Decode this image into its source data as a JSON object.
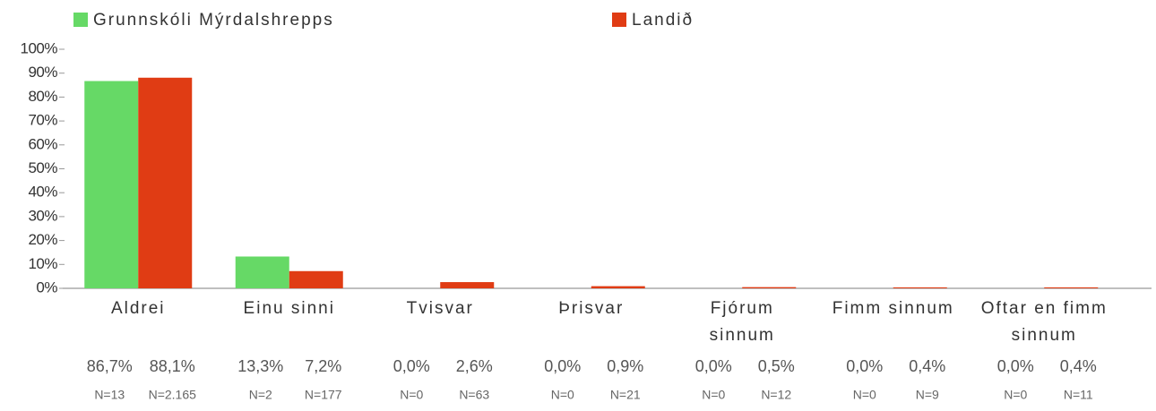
{
  "chart_data": {
    "type": "bar",
    "categories": [
      "Aldrei",
      "Einu sinni",
      "Tvisvar",
      "Þrisvar",
      "Fjórum sinnum",
      "Fimm sinnum",
      "Oftar en fimm sinnum"
    ],
    "series": [
      {
        "name": "Grunnskóli Mýrdalshrepps",
        "color": "#66d966",
        "values": [
          86.7,
          13.3,
          0,
          0,
          0,
          0,
          0
        ],
        "value_labels": [
          "86,7%",
          "13,3%",
          "0,0%",
          "0,0%",
          "0,0%",
          "0,0%",
          "0,0%"
        ],
        "n_labels": [
          "N=13",
          "N=2",
          "N=0",
          "N=0",
          "N=0",
          "N=0",
          "N=0"
        ]
      },
      {
        "name": "Landið",
        "color": "#e03c14",
        "values": [
          88.1,
          7.2,
          2.6,
          0.9,
          0.5,
          0.4,
          0.4
        ],
        "value_labels": [
          "88,1%",
          "7,2%",
          "2,6%",
          "0,9%",
          "0,5%",
          "0,4%",
          "0,4%"
        ],
        "n_labels": [
          "N=2.165",
          "N=177",
          "N=63",
          "N=21",
          "N=12",
          "N=9",
          "N=11"
        ]
      }
    ],
    "ylim": [
      0,
      100
    ],
    "yticks": [
      {
        "value": 0,
        "label": "0%"
      },
      {
        "value": 10,
        "label": "10%"
      },
      {
        "value": 20,
        "label": "20%"
      },
      {
        "value": 30,
        "label": "30%"
      },
      {
        "value": 40,
        "label": "40%"
      },
      {
        "value": 50,
        "label": "50%"
      },
      {
        "value": 60,
        "label": "60%"
      },
      {
        "value": 70,
        "label": "70%"
      },
      {
        "value": 80,
        "label": "80%"
      },
      {
        "value": 90,
        "label": "90%"
      },
      {
        "value": 100,
        "label": "100%"
      }
    ]
  }
}
